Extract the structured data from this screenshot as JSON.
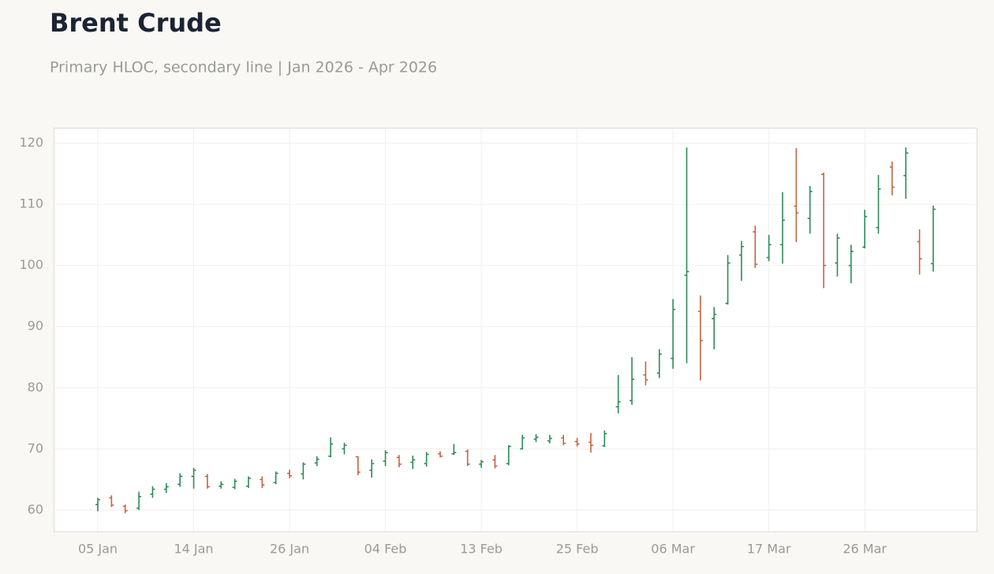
{
  "chart_data": {
    "type": "ohlc",
    "title": "Brent Crude",
    "subtitle": "Primary HLOC, secondary line | Jan 2026 - Apr 2026",
    "categories": [
      "05 Jan",
      null,
      null,
      null,
      null,
      null,
      null,
      "14 Jan",
      null,
      null,
      null,
      null,
      null,
      null,
      "26 Jan",
      null,
      null,
      null,
      null,
      null,
      null,
      "04 Feb",
      null,
      null,
      null,
      null,
      null,
      null,
      "13 Feb",
      null,
      null,
      null,
      null,
      null,
      null,
      "25 Feb",
      null,
      null,
      null,
      null,
      null,
      null,
      "06 Mar",
      null,
      null,
      null,
      null,
      null,
      null,
      "17 Mar",
      null,
      null,
      null,
      null,
      null,
      null,
      "26 Mar",
      null,
      null,
      null,
      null,
      null
    ],
    "open": [
      60.9,
      62.0,
      60.6,
      60.3,
      62.6,
      63.4,
      64.2,
      65.5,
      65.5,
      63.9,
      63.7,
      63.9,
      65.0,
      64.5,
      66.0,
      65.9,
      67.7,
      68.8,
      70.0,
      68.7,
      66.5,
      68.0,
      68.6,
      67.8,
      67.6,
      69.2,
      69.2,
      69.6,
      67.5,
      68.2,
      67.6,
      70.0,
      71.6,
      71.3,
      71.8,
      71.2,
      71.1,
      70.5,
      76.9,
      77.9,
      82.1,
      82.4,
      84.8,
      98.4,
      92.5,
      91.3,
      93.8,
      101.7,
      105.5,
      101.3,
      103.4,
      109.7,
      107.7,
      114.9,
      100.4,
      100.0,
      103.0,
      106.2,
      116.1,
      114.7,
      103.9,
      100.3
    ],
    "high": [
      62.0,
      62.4,
      60.9,
      63.0,
      63.9,
      64.4,
      66.0,
      66.9,
      65.9,
      64.7,
      65.1,
      65.5,
      65.5,
      66.3,
      66.6,
      67.8,
      68.8,
      71.9,
      71.0,
      68.8,
      68.3,
      69.8,
      69.0,
      68.9,
      69.5,
      69.6,
      70.8,
      69.9,
      68.2,
      69.0,
      70.6,
      72.3,
      72.4,
      72.3,
      72.3,
      71.8,
      72.6,
      73.0,
      82.1,
      85.0,
      84.3,
      86.3,
      94.5,
      119.3,
      95.1,
      93.2,
      101.7,
      104.0,
      106.5,
      105.0,
      112.0,
      119.2,
      113.0,
      115.2,
      105.2,
      103.4,
      109.1,
      114.8,
      117.0,
      119.3,
      105.9,
      109.8
    ],
    "low": [
      59.8,
      60.5,
      59.5,
      60.0,
      62.0,
      62.8,
      63.8,
      63.5,
      63.5,
      63.5,
      63.4,
      63.6,
      63.6,
      64.2,
      65.2,
      65.0,
      67.2,
      68.6,
      69.1,
      65.7,
      65.3,
      67.2,
      67.0,
      66.7,
      67.1,
      68.6,
      69.0,
      67.2,
      66.9,
      66.8,
      67.3,
      69.9,
      71.1,
      70.9,
      70.6,
      70.4,
      69.4,
      70.3,
      75.8,
      77.2,
      80.4,
      81.6,
      83.1,
      84.0,
      81.2,
      86.3,
      93.6,
      97.5,
      99.6,
      100.7,
      100.3,
      103.8,
      105.2,
      96.3,
      98.2,
      97.1,
      102.8,
      105.2,
      111.5,
      110.9,
      98.5,
      99.0
    ],
    "close": [
      61.7,
      60.8,
      59.9,
      62.2,
      63.4,
      63.8,
      65.5,
      66.5,
      63.8,
      64.2,
      64.7,
      65.2,
      64.1,
      66.0,
      65.6,
      67.5,
      68.3,
      70.8,
      70.6,
      66.2,
      67.6,
      69.4,
      67.5,
      68.2,
      69.1,
      68.8,
      69.4,
      67.5,
      67.9,
      67.2,
      70.4,
      71.8,
      71.9,
      71.7,
      70.9,
      70.8,
      70.6,
      72.5,
      77.7,
      81.4,
      81.3,
      85.5,
      92.8,
      99.0,
      87.7,
      92.0,
      100.4,
      103.1,
      100.2,
      103.4,
      107.4,
      108.6,
      112.1,
      100.0,
      104.5,
      102.3,
      108.0,
      112.5,
      112.8,
      118.4,
      101.1,
      109.2
    ],
    "up_color": "#2e8b57",
    "down_color": "#c8643c",
    "ylim": [
      56.5,
      122.4
    ],
    "yticks": [
      60,
      70,
      80,
      90,
      100,
      110,
      120
    ],
    "grid": true
  }
}
